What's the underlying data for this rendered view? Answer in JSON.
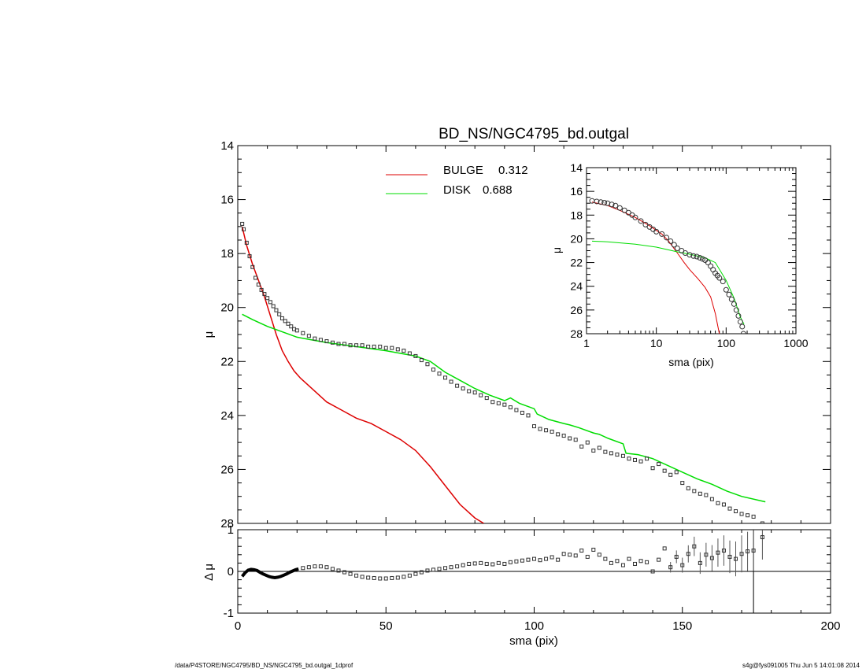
{
  "chart_data": [
    {
      "type": "scatter",
      "title": "BD_NS/NGC4795_bd.outgal",
      "xlabel": "",
      "ylabel": "μ",
      "xlim": [
        0,
        200
      ],
      "ylim": [
        28,
        14
      ],
      "y_reversed": true,
      "xticks": [
        "0",
        "50",
        "100",
        "150",
        "200"
      ],
      "yticks": [
        "14",
        "16",
        "18",
        "20",
        "22",
        "24",
        "26",
        "28"
      ],
      "legend": {
        "placement": "top-center",
        "entries": [
          {
            "label": "BULGE",
            "value": "0.312",
            "color": "#dd0000"
          },
          {
            "label": "DISK",
            "value": "0.688",
            "color": "#00dd00"
          }
        ]
      },
      "series": [
        {
          "name": "BULGE",
          "kind": "line",
          "color": "#dd0000",
          "x": [
            1.5,
            3,
            5,
            7,
            9,
            11,
            13,
            15,
            17,
            19,
            21,
            25,
            30,
            35,
            40,
            45,
            50,
            55,
            60,
            65,
            70,
            75,
            80,
            83
          ],
          "y": [
            17.0,
            17.7,
            18.4,
            19.0,
            19.6,
            20.3,
            21.0,
            21.6,
            22.0,
            22.35,
            22.6,
            23.0,
            23.5,
            23.8,
            24.1,
            24.3,
            24.6,
            24.9,
            25.3,
            25.9,
            26.6,
            27.3,
            27.8,
            28.0
          ]
        },
        {
          "name": "DISK",
          "kind": "line",
          "color": "#00dd00",
          "x": [
            1.5,
            5,
            10,
            15,
            20,
            25,
            30,
            40,
            50,
            60,
            65,
            70,
            75,
            80,
            85,
            90,
            92,
            95,
            100,
            101,
            105,
            110,
            112,
            115,
            120,
            122,
            125,
            130,
            131,
            135,
            140,
            145,
            150,
            155,
            160,
            165,
            170,
            178
          ],
          "y": [
            20.25,
            20.45,
            20.7,
            20.9,
            21.1,
            21.2,
            21.3,
            21.45,
            21.6,
            21.8,
            22.0,
            22.4,
            22.7,
            23.0,
            23.25,
            23.45,
            23.35,
            23.55,
            23.75,
            23.95,
            24.15,
            24.3,
            24.35,
            24.45,
            24.65,
            24.7,
            24.85,
            25.05,
            25.4,
            25.45,
            25.6,
            25.85,
            26.1,
            26.35,
            26.55,
            26.8,
            27.0,
            27.2
          ]
        },
        {
          "name": "",
          "kind": "points",
          "color": "#333333",
          "x": [
            1.5,
            2,
            3,
            4,
            5,
            6,
            7,
            8,
            9,
            10,
            11,
            12,
            13,
            14,
            15,
            16,
            17,
            18,
            19,
            20,
            22,
            24,
            26,
            28,
            30,
            32,
            34,
            36,
            38,
            40,
            42,
            44,
            46,
            48,
            50,
            52,
            54,
            56,
            58,
            60,
            62,
            64,
            66,
            68,
            70,
            72,
            74,
            76,
            78,
            80,
            82,
            84,
            86,
            88,
            90,
            92,
            94,
            96,
            98,
            100,
            102,
            104,
            106,
            108,
            110,
            112,
            114,
            116,
            118,
            120,
            122,
            124,
            126,
            128,
            130,
            132,
            134,
            136,
            138,
            140,
            142,
            144,
            146,
            148,
            150,
            152,
            154,
            156,
            158,
            160,
            162,
            164,
            166,
            168,
            170,
            172,
            174,
            177
          ],
          "y": [
            16.9,
            17.1,
            17.6,
            18.1,
            18.5,
            18.9,
            19.15,
            19.35,
            19.5,
            19.65,
            19.8,
            19.95,
            20.1,
            20.25,
            20.4,
            20.5,
            20.6,
            20.7,
            20.8,
            20.85,
            20.95,
            21.05,
            21.15,
            21.2,
            21.25,
            21.3,
            21.35,
            21.35,
            21.4,
            21.4,
            21.4,
            21.45,
            21.45,
            21.45,
            21.5,
            21.5,
            21.55,
            21.6,
            21.7,
            21.8,
            21.95,
            22.1,
            22.3,
            22.45,
            22.6,
            22.75,
            22.9,
            23.0,
            23.1,
            23.15,
            23.25,
            23.35,
            23.5,
            23.55,
            23.6,
            23.7,
            23.8,
            23.9,
            24.0,
            24.4,
            24.5,
            24.55,
            24.6,
            24.7,
            24.75,
            24.85,
            24.9,
            25.15,
            25.0,
            25.3,
            25.2,
            25.35,
            25.4,
            25.45,
            25.5,
            25.6,
            25.65,
            25.7,
            25.6,
            25.95,
            25.8,
            26.05,
            26.2,
            26.1,
            26.5,
            26.7,
            26.8,
            26.9,
            26.95,
            27.1,
            27.25,
            27.3,
            27.45,
            27.55,
            27.65,
            27.7,
            27.75,
            28.0
          ]
        }
      ]
    },
    {
      "type": "scatter",
      "xlabel": "sma (pix)",
      "ylabel": "Δ μ",
      "xlim": [
        0,
        200
      ],
      "ylim": [
        -1,
        1
      ],
      "xticks": [
        "0",
        "50",
        "100",
        "150",
        "200"
      ],
      "yticks": [
        "1",
        "0",
        "-1"
      ],
      "vline_x": 174,
      "series": [
        {
          "name": "",
          "kind": "curve",
          "color": "#000000",
          "x": [
            1.5,
            2.5,
            3.5,
            4.5,
            5.5,
            6.5,
            7.5,
            8.5,
            9.5,
            10.5,
            11.5,
            12.5,
            13.5,
            14.5,
            15.5,
            16.5,
            17.5,
            18.5,
            19.5,
            20.5
          ],
          "y": [
            -0.12,
            -0.03,
            0.03,
            0.05,
            0.04,
            0.02,
            -0.02,
            -0.06,
            -0.09,
            -0.12,
            -0.14,
            -0.15,
            -0.14,
            -0.12,
            -0.09,
            -0.06,
            -0.02,
            0.01,
            0.04,
            0.06
          ]
        },
        {
          "name": "",
          "kind": "points",
          "color": "#333333",
          "x": [
            22,
            24,
            26,
            28,
            30,
            32,
            34,
            36,
            38,
            40,
            42,
            44,
            46,
            48,
            50,
            52,
            54,
            56,
            58,
            60,
            62,
            64,
            66,
            68,
            70,
            72,
            74,
            76,
            78,
            80,
            82,
            84,
            86,
            88,
            90,
            92,
            94,
            96,
            98,
            100,
            102,
            104,
            106,
            108,
            110,
            112,
            114,
            116,
            118,
            120,
            122,
            124,
            126,
            128,
            130,
            132,
            134,
            136,
            138,
            140,
            142,
            144,
            146,
            148,
            150,
            152,
            154,
            156,
            158,
            160,
            162,
            164,
            166,
            168,
            170,
            172,
            174,
            177
          ],
          "y": [
            0.08,
            0.1,
            0.12,
            0.12,
            0.1,
            0.06,
            0.02,
            -0.02,
            -0.06,
            -0.1,
            -0.13,
            -0.15,
            -0.16,
            -0.17,
            -0.17,
            -0.16,
            -0.15,
            -0.13,
            -0.1,
            -0.06,
            -0.02,
            0.02,
            0.04,
            0.06,
            0.08,
            0.1,
            0.12,
            0.15,
            0.18,
            0.19,
            0.2,
            0.18,
            0.17,
            0.2,
            0.18,
            0.22,
            0.24,
            0.26,
            0.28,
            0.3,
            0.27,
            0.3,
            0.34,
            0.28,
            0.42,
            0.4,
            0.38,
            0.5,
            0.35,
            0.52,
            0.4,
            0.3,
            0.2,
            0.25,
            0.15,
            0.3,
            0.18,
            0.25,
            0.22,
            0.0,
            0.28,
            0.55,
            0.1,
            0.35,
            0.15,
            0.42,
            0.6,
            0.2,
            0.4,
            0.32,
            0.45,
            0.5,
            0.35,
            0.3,
            0.42,
            0.48,
            0.5,
            0.82
          ]
        }
      ]
    },
    {
      "type": "scatter",
      "xlabel": "sma (pix)",
      "ylabel": "μ",
      "x_scale": "log",
      "xlim": [
        1,
        1000
      ],
      "ylim": [
        28,
        14
      ],
      "y_reversed": true,
      "xticks": [
        "1",
        "10",
        "100",
        "1000"
      ],
      "yticks": [
        "14",
        "16",
        "18",
        "20",
        "22",
        "24",
        "26",
        "28"
      ],
      "series": [
        {
          "name": "",
          "kind": "line",
          "color": "#dd0000",
          "x": [
            1.2,
            2,
            3,
            5,
            8,
            12,
            15,
            20,
            25,
            30,
            40,
            50,
            60,
            70,
            80
          ],
          "y": [
            16.9,
            17.2,
            17.6,
            18.2,
            18.9,
            19.6,
            20.2,
            21.2,
            22.0,
            22.6,
            23.4,
            24.1,
            24.9,
            26.3,
            28.0
          ]
        },
        {
          "name": "",
          "kind": "line",
          "color": "#00dd00",
          "x": [
            1.2,
            2,
            5,
            10,
            20,
            30,
            50,
            70,
            100,
            130,
            160,
            180
          ],
          "y": [
            20.2,
            20.25,
            20.45,
            20.7,
            21.1,
            21.3,
            21.6,
            22.0,
            23.5,
            25.0,
            26.6,
            27.2
          ]
        },
        {
          "name": "",
          "kind": "points",
          "color": "#333333",
          "x": [
            1.2,
            1.4,
            1.6,
            1.8,
            2,
            2.3,
            2.6,
            3,
            3.5,
            4,
            4.5,
            5,
            6,
            7,
            8,
            9,
            10,
            12,
            14,
            16,
            18,
            20,
            23,
            26,
            30,
            34,
            38,
            42,
            46,
            50,
            55,
            60,
            65,
            70,
            75,
            80,
            90,
            100,
            110,
            120,
            130,
            140,
            150,
            160,
            170,
            177
          ],
          "y": [
            16.8,
            16.85,
            16.9,
            16.95,
            17.0,
            17.1,
            17.2,
            17.4,
            17.6,
            17.8,
            18.0,
            18.2,
            18.5,
            18.8,
            19.0,
            19.2,
            19.4,
            19.6,
            19.9,
            20.2,
            20.5,
            20.8,
            21.0,
            21.2,
            21.35,
            21.45,
            21.5,
            21.6,
            21.7,
            21.8,
            22.0,
            22.3,
            22.6,
            22.9,
            23.1,
            23.3,
            23.6,
            24.3,
            24.7,
            25.1,
            25.5,
            26.0,
            26.5,
            27.0,
            27.4,
            28.0
          ]
        }
      ]
    }
  ],
  "footer": {
    "left": "/data/P4STORE/NGC4795/BD_NS/NGC4795_bd.outgal_1dprof",
    "right": "s4g@fys091005  Thu Jun  5 14:01:08 2014"
  }
}
